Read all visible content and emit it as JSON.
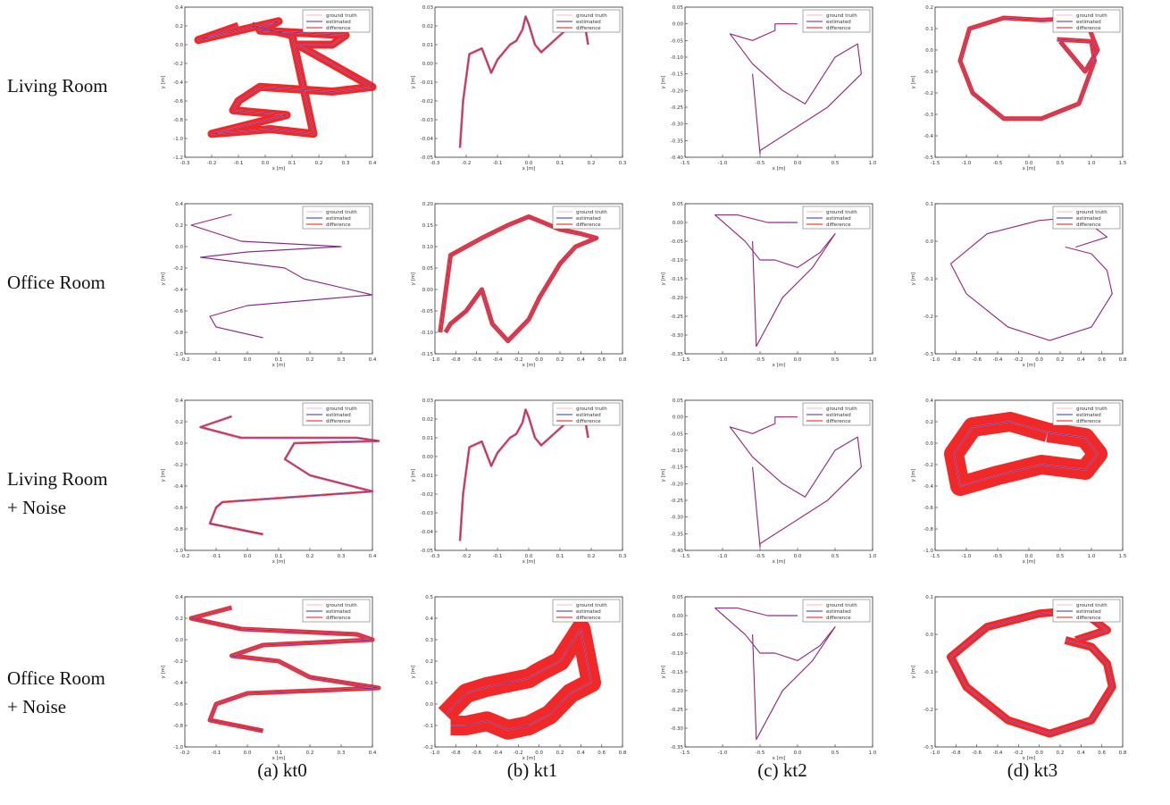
{
  "rows": [
    {
      "line1": "Living Room",
      "line2": ""
    },
    {
      "line1": "Office Room",
      "line2": ""
    },
    {
      "line1": "Living  Room",
      "line2": "+ Noise"
    },
    {
      "line1": "Office  Room",
      "line2": "+ Noise"
    }
  ],
  "columns": [
    {
      "caption": "(a) kt0",
      "xlabel": "x [m]",
      "ylabel": "y [m]"
    },
    {
      "caption": "(b) kt1",
      "xlabel": "x [m]",
      "ylabel": "y [m]"
    },
    {
      "caption": "(c) kt2",
      "xlabel": "x [m]",
      "ylabel": "y [m]"
    },
    {
      "caption": "(d) kt3",
      "xlabel": "x [m]",
      "ylabel": "y [m]"
    }
  ],
  "legend": [
    "ground truth",
    "estimated",
    "difference"
  ],
  "colors": {
    "ground_truth": "#f4b6c8",
    "estimated": "#2e2ed8",
    "difference": "#ee1111",
    "frame": "#333333"
  },
  "chart_data": [
    {
      "row": 0,
      "col": 0,
      "type": "line",
      "difference_level": "heavy",
      "xlim": [
        -0.3,
        0.4
      ],
      "ylim": [
        -1.2,
        0.4
      ],
      "xticks": [
        "-0.3",
        "-0.2",
        "-0.1",
        "0.0",
        "0.1",
        "0.2",
        "0.3",
        "0.4"
      ],
      "yticks": [
        "0.4",
        "0.2",
        "0.0",
        "-0.2",
        "-0.4",
        "-0.6",
        "-0.8",
        "-1.0",
        "-1.2"
      ],
      "series": [
        {
          "name": "estimated",
          "x": [
            -0.1,
            -0.25,
            -0.1,
            0.05,
            -0.02,
            0.3,
            0.25,
            0.12,
            0.4,
            0.25,
            -0.02,
            -0.1,
            -0.12,
            0.08,
            -0.2,
            0.02,
            0.18,
            0.1,
            -0.05
          ],
          "y": [
            0.2,
            0.05,
            0.15,
            0.25,
            0.15,
            0.1,
            0.0,
            0.0,
            -0.45,
            -0.5,
            -0.45,
            -0.6,
            -0.7,
            -0.75,
            -0.95,
            -0.9,
            -0.95,
            0.1,
            0.2
          ]
        }
      ]
    },
    {
      "row": 0,
      "col": 1,
      "type": "line",
      "difference_level": "light",
      "xlim": [
        -0.3,
        0.3
      ],
      "ylim": [
        -0.05,
        0.03
      ],
      "xticks": [
        "-0.3",
        "-0.2",
        "-0.1",
        "0.0",
        "0.1",
        "0.2",
        "0.3"
      ],
      "yticks": [
        "0.03",
        "0.02",
        "0.01",
        "0.00",
        "-0.01",
        "-0.02",
        "-0.03",
        "-0.04",
        "-0.05"
      ],
      "series": [
        {
          "name": "estimated",
          "x": [
            -0.22,
            -0.21,
            -0.19,
            -0.15,
            -0.12,
            -0.1,
            -0.06,
            -0.04,
            -0.02,
            -0.01,
            0.0,
            0.02,
            0.04,
            0.08,
            0.12,
            0.18,
            0.19
          ],
          "y": [
            -0.045,
            -0.02,
            0.005,
            0.008,
            -0.005,
            0.002,
            0.01,
            0.012,
            0.018,
            0.025,
            0.021,
            0.01,
            0.006,
            0.012,
            0.018,
            0.02,
            0.01
          ]
        }
      ]
    },
    {
      "row": 0,
      "col": 2,
      "type": "line",
      "difference_level": "none",
      "xlim": [
        -1.5,
        1.0
      ],
      "ylim": [
        -0.4,
        0.05
      ],
      "xticks": [
        "-1.5",
        "-1.0",
        "-0.5",
        "0.0",
        "0.5",
        "1.0"
      ],
      "yticks": [
        "0.05",
        "0.00",
        "-0.05",
        "-0.10",
        "-0.15",
        "-0.20",
        "-0.25",
        "-0.30",
        "-0.35",
        "-0.40"
      ],
      "series": [
        {
          "name": "estimated",
          "x": [
            0.0,
            -0.3,
            -0.3,
            -0.6,
            -0.9,
            -0.6,
            -0.2,
            0.1,
            0.5,
            0.8,
            0.85,
            0.4,
            -0.5,
            -0.5,
            -0.6
          ],
          "y": [
            0.0,
            0.0,
            -0.02,
            -0.05,
            -0.03,
            -0.12,
            -0.2,
            -0.24,
            -0.1,
            -0.06,
            -0.15,
            -0.25,
            -0.38,
            -0.39,
            -0.15
          ]
        }
      ]
    },
    {
      "row": 0,
      "col": 3,
      "type": "line",
      "difference_level": "medium",
      "xlim": [
        -1.5,
        1.5
      ],
      "ylim": [
        -0.5,
        0.2
      ],
      "xticks": [
        "-1.5",
        "-1.0",
        "-0.5",
        "0.0",
        "0.5",
        "1.0",
        "1.5"
      ],
      "yticks": [
        "0.2",
        "0.1",
        "0.0",
        "-0.1",
        "-0.2",
        "-0.3",
        "-0.4",
        "-0.5"
      ],
      "series": [
        {
          "name": "estimated",
          "x": [
            0.45,
            1.0,
            1.05,
            0.8,
            0.2,
            -0.4,
            -0.9,
            -1.1,
            -0.95,
            -0.4,
            0.2,
            0.9,
            1.1,
            0.9,
            0.5
          ],
          "y": [
            0.05,
            0.04,
            -0.05,
            -0.25,
            -0.32,
            -0.32,
            -0.2,
            -0.05,
            0.1,
            0.15,
            0.14,
            0.15,
            0.0,
            -0.1,
            0.04
          ]
        }
      ]
    },
    {
      "row": 1,
      "col": 0,
      "type": "line",
      "difference_level": "none",
      "xlim": [
        -0.2,
        0.4
      ],
      "ylim": [
        -1.0,
        0.4
      ],
      "xticks": [
        "-0.2",
        "-0.1",
        "0.0",
        "0.1",
        "0.2",
        "0.3",
        "0.4"
      ],
      "yticks": [
        "0.4",
        "0.2",
        "0.0",
        "-0.2",
        "-0.4",
        "-0.6",
        "-0.8",
        "-1.0"
      ],
      "series": [
        {
          "name": "estimated",
          "x": [
            -0.05,
            -0.18,
            -0.02,
            0.3,
            0.0,
            -0.15,
            0.12,
            0.18,
            0.4,
            0.0,
            -0.12,
            -0.1,
            0.05
          ],
          "y": [
            0.3,
            0.2,
            0.05,
            0.0,
            -0.05,
            -0.1,
            -0.2,
            -0.3,
            -0.45,
            -0.55,
            -0.65,
            -0.75,
            -0.85
          ]
        }
      ]
    },
    {
      "row": 1,
      "col": 1,
      "type": "line",
      "difference_level": "medium",
      "xlim": [
        -1.0,
        0.8
      ],
      "ylim": [
        -0.15,
        0.2
      ],
      "xticks": [
        "-1.0",
        "-0.8",
        "-0.6",
        "-0.4",
        "-0.2",
        "0.0",
        "0.2",
        "0.4",
        "0.6",
        "0.8"
      ],
      "yticks": [
        "0.20",
        "0.15",
        "0.10",
        "0.05",
        "0.00",
        "-0.05",
        "-0.10",
        "-0.15"
      ],
      "series": [
        {
          "name": "estimated",
          "x": [
            -0.95,
            -0.85,
            -0.7,
            -0.55,
            -0.3,
            -0.1,
            0.0,
            0.2,
            0.4,
            0.55,
            0.35,
            0.2,
            0.15,
            0.1,
            0.0,
            -0.1,
            -0.3,
            -0.45,
            -0.55,
            -0.7,
            -0.85,
            -0.9
          ],
          "y": [
            -0.1,
            0.08,
            0.1,
            0.12,
            0.15,
            0.17,
            0.16,
            0.14,
            0.13,
            0.12,
            0.1,
            0.06,
            0.04,
            0.02,
            -0.02,
            -0.07,
            -0.12,
            -0.08,
            -0.0,
            -0.05,
            -0.08,
            -0.1
          ]
        }
      ]
    },
    {
      "row": 1,
      "col": 2,
      "type": "line",
      "difference_level": "none",
      "xlim": [
        -1.5,
        1.0
      ],
      "ylim": [
        -0.35,
        0.05
      ],
      "xticks": [
        "-1.5",
        "-1.0",
        "-0.5",
        "0.0",
        "0.5",
        "1.0"
      ],
      "yticks": [
        "0.05",
        "0.00",
        "-0.05",
        "-0.10",
        "-0.15",
        "-0.20",
        "-0.25",
        "-0.30",
        "-0.35"
      ],
      "series": [
        {
          "name": "estimated",
          "x": [
            0.0,
            -0.4,
            -0.8,
            -1.1,
            -0.7,
            -0.5,
            -0.3,
            0.0,
            0.3,
            0.5,
            0.2,
            -0.2,
            -0.55,
            -0.6
          ],
          "y": [
            0.0,
            0.0,
            0.02,
            0.02,
            -0.05,
            -0.1,
            -0.1,
            -0.12,
            -0.08,
            -0.03,
            -0.12,
            -0.2,
            -0.33,
            -0.05
          ]
        }
      ]
    },
    {
      "row": 1,
      "col": 3,
      "type": "line",
      "difference_level": "none",
      "xlim": [
        -1.0,
        0.8
      ],
      "ylim": [
        -0.3,
        0.15
      ],
      "xticks": [
        "-1.0",
        "-0.8",
        "-0.6",
        "-0.4",
        "-0.2",
        "0.0",
        "0.2",
        "0.4",
        "0.6",
        "0.8"
      ],
      "yticks": [
        "0.1",
        "0.0",
        "-0.1",
        "-0.2",
        "-0.3"
      ],
      "series": [
        {
          "name": "estimated",
          "x": [
            0.25,
            0.5,
            0.65,
            0.7,
            0.5,
            0.1,
            -0.3,
            -0.7,
            -0.85,
            -0.5,
            0.0,
            0.4,
            0.65,
            0.35
          ],
          "y": [
            0.02,
            0.0,
            -0.05,
            -0.12,
            -0.22,
            -0.26,
            -0.22,
            -0.12,
            -0.03,
            0.06,
            0.1,
            0.11,
            0.05,
            0.02
          ]
        }
      ]
    },
    {
      "row": 2,
      "col": 0,
      "type": "line",
      "difference_level": "light",
      "xlim": [
        -0.2,
        0.4
      ],
      "ylim": [
        -1.0,
        0.4
      ],
      "xticks": [
        "-0.2",
        "-0.1",
        "0.0",
        "0.1",
        "0.2",
        "0.3",
        "0.4"
      ],
      "yticks": [
        "0.4",
        "0.2",
        "0.0",
        "-0.2",
        "-0.4",
        "-0.6",
        "-0.8",
        "-1.0"
      ],
      "series": [
        {
          "name": "estimated",
          "x": [
            -0.05,
            -0.15,
            -0.02,
            0.35,
            0.42,
            0.15,
            0.12,
            0.2,
            0.4,
            -0.08,
            -0.1,
            -0.12,
            0.05
          ],
          "y": [
            0.25,
            0.15,
            0.05,
            0.05,
            0.02,
            0.0,
            -0.15,
            -0.3,
            -0.45,
            -0.55,
            -0.6,
            -0.75,
            -0.85
          ]
        }
      ]
    },
    {
      "row": 2,
      "col": 1,
      "type": "line",
      "difference_level": "light",
      "xlim": [
        -0.3,
        0.3
      ],
      "ylim": [
        -0.05,
        0.03
      ],
      "xticks": [
        "-0.3",
        "-0.2",
        "-0.1",
        "0.0",
        "0.1",
        "0.2",
        "0.3"
      ],
      "yticks": [
        "0.03",
        "0.02",
        "0.01",
        "0.00",
        "-0.01",
        "-0.02",
        "-0.03",
        "-0.04",
        "-0.05"
      ],
      "series": [
        {
          "name": "estimated",
          "x": [
            -0.22,
            -0.21,
            -0.19,
            -0.15,
            -0.12,
            -0.1,
            -0.06,
            -0.04,
            -0.02,
            -0.01,
            0.0,
            0.02,
            0.04,
            0.08,
            0.12,
            0.18,
            0.19
          ],
          "y": [
            -0.045,
            -0.02,
            0.005,
            0.008,
            -0.005,
            0.002,
            0.01,
            0.012,
            0.018,
            0.025,
            0.021,
            0.01,
            0.006,
            0.012,
            0.018,
            0.02,
            0.01
          ]
        }
      ]
    },
    {
      "row": 2,
      "col": 2,
      "type": "line",
      "difference_level": "none",
      "xlim": [
        -1.5,
        1.0
      ],
      "ylim": [
        -0.4,
        0.05
      ],
      "xticks": [
        "-1.5",
        "-1.0",
        "-0.5",
        "0.0",
        "0.5",
        "1.0"
      ],
      "yticks": [
        "0.05",
        "0.00",
        "-0.05",
        "-0.10",
        "-0.15",
        "-0.20",
        "-0.25",
        "-0.30",
        "-0.35",
        "-0.40"
      ],
      "series": [
        {
          "name": "estimated",
          "x": [
            0.0,
            -0.3,
            -0.3,
            -0.6,
            -0.9,
            -0.6,
            -0.2,
            0.1,
            0.5,
            0.8,
            0.85,
            0.4,
            -0.5,
            -0.5,
            -0.6
          ],
          "y": [
            0.0,
            0.0,
            -0.02,
            -0.05,
            -0.03,
            -0.12,
            -0.2,
            -0.24,
            -0.1,
            -0.06,
            -0.15,
            -0.25,
            -0.38,
            -0.39,
            -0.15
          ]
        }
      ]
    },
    {
      "row": 2,
      "col": 3,
      "type": "line",
      "difference_level": "extreme",
      "xlim": [
        -1.5,
        1.5
      ],
      "ylim": [
        -1.0,
        0.4
      ],
      "xticks": [
        "-1.5",
        "-1.0",
        "-0.5",
        "0.0",
        "0.5",
        "1.0",
        "1.5"
      ],
      "yticks": [
        "0.4",
        "0.2",
        "0.0",
        "-0.2",
        "-0.4",
        "-0.6",
        "-0.8",
        "-1.0"
      ],
      "series": [
        {
          "name": "estimated",
          "x": [
            0.3,
            0.9,
            1.1,
            0.9,
            0.2,
            -0.5,
            -1.1,
            -1.2,
            -0.9,
            -0.3,
            0.3
          ],
          "y": [
            0.1,
            0.05,
            -0.1,
            -0.25,
            -0.2,
            -0.3,
            -0.4,
            -0.1,
            0.15,
            0.2,
            0.1
          ]
        }
      ]
    },
    {
      "row": 3,
      "col": 0,
      "type": "line",
      "difference_level": "medium",
      "xlim": [
        -0.2,
        0.4
      ],
      "ylim": [
        -1.0,
        0.4
      ],
      "xticks": [
        "-0.2",
        "-0.1",
        "0.0",
        "0.1",
        "0.2",
        "0.3",
        "0.4"
      ],
      "yticks": [
        "0.4",
        "0.2",
        "0.0",
        "-0.2",
        "-0.4",
        "-0.6",
        "-0.8",
        "-1.0"
      ],
      "series": [
        {
          "name": "estimated",
          "x": [
            -0.05,
            -0.18,
            -0.02,
            0.35,
            0.4,
            0.05,
            -0.05,
            0.1,
            0.2,
            0.42,
            0.0,
            -0.1,
            -0.12,
            0.05
          ],
          "y": [
            0.3,
            0.2,
            0.1,
            0.05,
            0.0,
            -0.05,
            -0.15,
            -0.2,
            -0.35,
            -0.45,
            -0.5,
            -0.6,
            -0.75,
            -0.85
          ]
        }
      ]
    },
    {
      "row": 3,
      "col": 1,
      "type": "line",
      "difference_level": "extreme",
      "xlim": [
        -1.0,
        0.8
      ],
      "ylim": [
        -0.2,
        0.5
      ],
      "xticks": [
        "-1.0",
        "-0.8",
        "-0.6",
        "-0.4",
        "-0.2",
        "0.0",
        "0.2",
        "0.4",
        "0.6",
        "0.8"
      ],
      "yticks": [
        "0.5",
        "0.4",
        "0.3",
        "0.2",
        "0.1",
        "0.0",
        "-0.1",
        "-0.2"
      ],
      "series": [
        {
          "name": "estimated",
          "x": [
            -0.9,
            -0.7,
            -0.5,
            -0.3,
            -0.1,
            0.0,
            0.2,
            0.4,
            0.5,
            0.3,
            0.1,
            -0.1,
            -0.3,
            -0.5,
            -0.7,
            -0.85
          ],
          "y": [
            -0.05,
            0.05,
            0.08,
            0.1,
            0.12,
            0.15,
            0.2,
            0.35,
            0.1,
            0.05,
            -0.05,
            -0.1,
            -0.12,
            -0.08,
            -0.1,
            -0.1
          ]
        }
      ]
    },
    {
      "row": 3,
      "col": 2,
      "type": "line",
      "difference_level": "none",
      "xlim": [
        -1.5,
        1.0
      ],
      "ylim": [
        -0.35,
        0.05
      ],
      "xticks": [
        "-1.5",
        "-1.0",
        "-0.5",
        "0.0",
        "0.5",
        "1.0"
      ],
      "yticks": [
        "0.05",
        "0.00",
        "-0.05",
        "-0.10",
        "-0.15",
        "-0.20",
        "-0.25",
        "-0.30",
        "-0.35"
      ],
      "series": [
        {
          "name": "estimated",
          "x": [
            0.0,
            -0.4,
            -0.8,
            -1.1,
            -0.7,
            -0.5,
            -0.3,
            0.0,
            0.3,
            0.5,
            0.2,
            -0.2,
            -0.55,
            -0.6
          ],
          "y": [
            0.0,
            0.0,
            0.02,
            0.02,
            -0.05,
            -0.1,
            -0.1,
            -0.12,
            -0.08,
            -0.03,
            -0.12,
            -0.2,
            -0.33,
            -0.05
          ]
        }
      ]
    },
    {
      "row": 3,
      "col": 3,
      "type": "line",
      "difference_level": "heavy",
      "xlim": [
        -1.0,
        0.8
      ],
      "ylim": [
        -0.3,
        0.15
      ],
      "xticks": [
        "-1.0",
        "-0.8",
        "-0.6",
        "-0.4",
        "-0.2",
        "0.0",
        "0.2",
        "0.4",
        "0.6",
        "0.8"
      ],
      "yticks": [
        "0.1",
        "0.0",
        "-0.1",
        "-0.2",
        "-0.3"
      ],
      "series": [
        {
          "name": "estimated",
          "x": [
            0.25,
            0.5,
            0.65,
            0.7,
            0.5,
            0.1,
            -0.3,
            -0.7,
            -0.85,
            -0.5,
            0.0,
            0.4,
            0.65,
            0.35
          ],
          "y": [
            0.02,
            0.0,
            -0.05,
            -0.12,
            -0.22,
            -0.26,
            -0.22,
            -0.12,
            -0.03,
            0.06,
            0.1,
            0.11,
            0.05,
            0.02
          ]
        }
      ]
    }
  ]
}
